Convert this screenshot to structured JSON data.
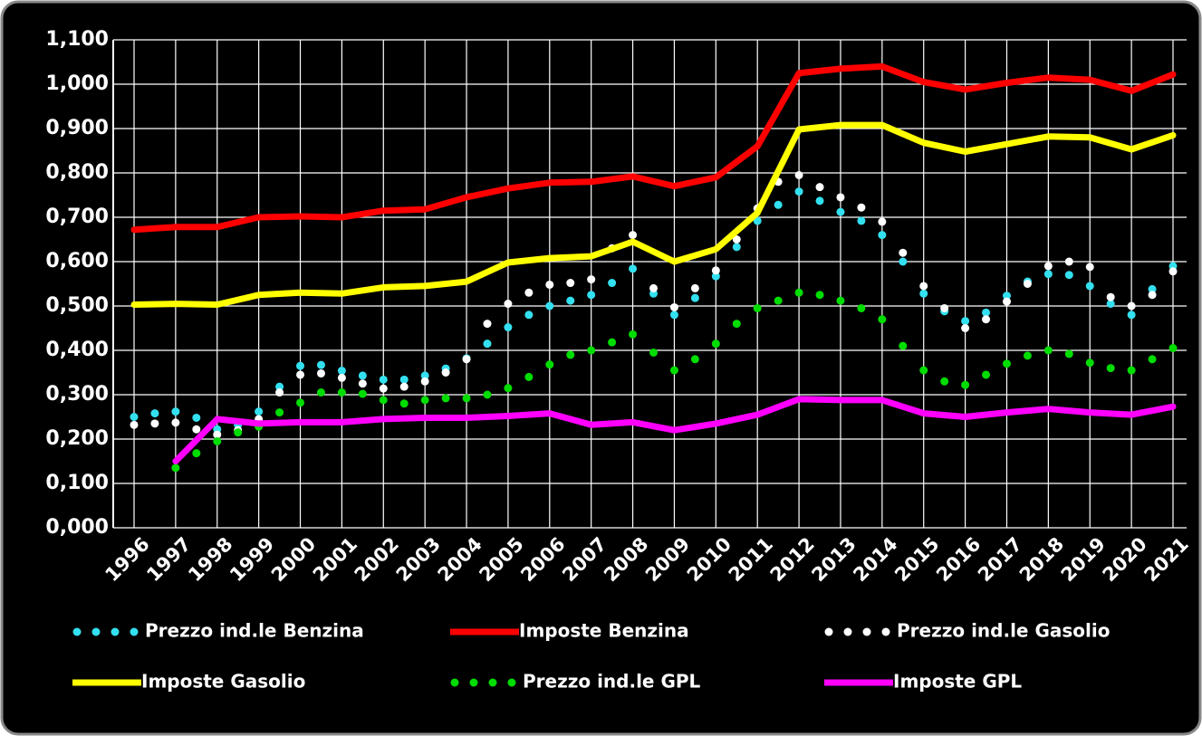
{
  "chart_data": {
    "type": "line",
    "xlim": [
      1996,
      2021
    ],
    "xticks": [
      1996,
      1997,
      1998,
      1999,
      2000,
      2001,
      2002,
      2003,
      2004,
      2005,
      2006,
      2007,
      2008,
      2009,
      2010,
      2011,
      2012,
      2013,
      2014,
      2015,
      2016,
      2017,
      2018,
      2019,
      2020,
      2021
    ],
    "ylim": [
      0,
      1.1
    ],
    "yticks": [
      {
        "value": 0,
        "label": "0,000"
      },
      {
        "value": 0.1,
        "label": "0,100"
      },
      {
        "value": 0.2,
        "label": "0,200"
      },
      {
        "value": 0.3,
        "label": "0,300"
      },
      {
        "value": 0.4,
        "label": "0,400"
      },
      {
        "value": 0.5,
        "label": "0,500"
      },
      {
        "value": 0.6,
        "label": "0,600"
      },
      {
        "value": 0.7,
        "label": "0,700"
      },
      {
        "value": 0.8,
        "label": "0,800"
      },
      {
        "value": 0.9,
        "label": "0,900"
      },
      {
        "value": 1.0,
        "label": "1,000"
      },
      {
        "value": 1.1,
        "label": "1,100"
      }
    ],
    "grid": true,
    "legend": "bottom",
    "series": [
      {
        "name": "Prezzo ind.le Benzina",
        "color": "#33e0f0",
        "style": "dotted",
        "x": [
          1996,
          1996.5,
          1997,
          1997.5,
          1998,
          1998.5,
          1999,
          1999.5,
          2000,
          2000.5,
          2001,
          2001.5,
          2002,
          2002.5,
          2003,
          2003.5,
          2004,
          2004.5,
          2005,
          2005.5,
          2006,
          2006.5,
          2007,
          2007.5,
          2008,
          2008.5,
          2009,
          2009.5,
          2010,
          2010.5,
          2011,
          2011.5,
          2012,
          2012.5,
          2013,
          2013.5,
          2014,
          2014.5,
          2015,
          2015.5,
          2016,
          2016.5,
          2017,
          2017.5,
          2018,
          2018.5,
          2019,
          2019.5,
          2020,
          2020.5,
          2021
        ],
        "values": [
          0.25,
          0.258,
          0.262,
          0.248,
          0.222,
          0.232,
          0.262,
          0.318,
          0.365,
          0.367,
          0.354,
          0.343,
          0.334,
          0.334,
          0.343,
          0.359,
          0.382,
          0.415,
          0.452,
          0.48,
          0.5,
          0.512,
          0.525,
          0.552,
          0.584,
          0.528,
          0.48,
          0.518,
          0.567,
          0.633,
          0.692,
          0.728,
          0.758,
          0.737,
          0.712,
          0.692,
          0.66,
          0.6,
          0.528,
          0.488,
          0.466,
          0.485,
          0.523,
          0.555,
          0.572,
          0.57,
          0.545,
          0.505,
          0.48,
          0.538,
          0.59
        ]
      },
      {
        "name": "Imposte Benzina",
        "color": "#ff0000",
        "style": "line",
        "x": [
          1996,
          1997,
          1998,
          1999,
          2000,
          2001,
          2002,
          2003,
          2004,
          2005,
          2006,
          2007,
          2008,
          2009,
          2010,
          2011,
          2012,
          2013,
          2014,
          2015,
          2016,
          2017,
          2018,
          2019,
          2020,
          2021
        ],
        "values": [
          0.672,
          0.678,
          0.678,
          0.7,
          0.702,
          0.7,
          0.715,
          0.718,
          0.745,
          0.765,
          0.778,
          0.78,
          0.792,
          0.77,
          0.79,
          0.86,
          1.025,
          1.035,
          1.04,
          1.005,
          0.988,
          1.003,
          1.015,
          1.01,
          0.985,
          1.022
        ]
      },
      {
        "name": "Prezzo ind.le Gasolio",
        "color": "#ffffff",
        "style": "dotted",
        "x": [
          1996,
          1996.5,
          1997,
          1997.5,
          1998,
          1998.5,
          1999,
          1999.5,
          2000,
          2000.5,
          2001,
          2001.5,
          2002,
          2002.5,
          2003,
          2003.5,
          2004,
          2004.5,
          2005,
          2005.5,
          2006,
          2006.5,
          2007,
          2007.5,
          2008,
          2008.5,
          2009,
          2009.5,
          2010,
          2010.5,
          2011,
          2011.5,
          2012,
          2012.5,
          2013,
          2013.5,
          2014,
          2014.5,
          2015,
          2015.5,
          2016,
          2016.5,
          2017,
          2017.5,
          2018,
          2018.5,
          2019,
          2019.5,
          2020,
          2020.5,
          2021
        ],
        "values": [
          0.232,
          0.235,
          0.237,
          0.222,
          0.21,
          0.22,
          0.245,
          0.305,
          0.345,
          0.348,
          0.338,
          0.325,
          0.314,
          0.318,
          0.33,
          0.35,
          0.38,
          0.46,
          0.505,
          0.53,
          0.548,
          0.552,
          0.56,
          0.63,
          0.66,
          0.54,
          0.497,
          0.54,
          0.58,
          0.65,
          0.72,
          0.78,
          0.795,
          0.768,
          0.745,
          0.722,
          0.69,
          0.62,
          0.545,
          0.495,
          0.45,
          0.47,
          0.51,
          0.55,
          0.59,
          0.6,
          0.588,
          0.52,
          0.5,
          0.525,
          0.578
        ]
      },
      {
        "name": "Imposte Gasolio",
        "color": "#ffff00",
        "style": "line",
        "x": [
          1996,
          1997,
          1998,
          1999,
          2000,
          2001,
          2002,
          2003,
          2004,
          2005,
          2006,
          2007,
          2008,
          2009,
          2010,
          2011,
          2012,
          2013,
          2014,
          2015,
          2016,
          2017,
          2018,
          2019,
          2020,
          2021
        ],
        "values": [
          0.503,
          0.505,
          0.503,
          0.525,
          0.53,
          0.528,
          0.542,
          0.545,
          0.555,
          0.598,
          0.608,
          0.612,
          0.645,
          0.6,
          0.628,
          0.71,
          0.898,
          0.908,
          0.908,
          0.868,
          0.848,
          0.865,
          0.882,
          0.88,
          0.853,
          0.885
        ]
      },
      {
        "name": "Prezzo ind.le GPL",
        "color": "#00dd00",
        "style": "dotted",
        "x": [
          1996,
          1996.5,
          1997,
          1997.5,
          1998,
          1998.5,
          1999,
          1999.5,
          2000,
          2000.5,
          2001,
          2001.5,
          2002,
          2002.5,
          2003,
          2003.5,
          2004,
          2004.5,
          2005,
          2005.5,
          2006,
          2006.5,
          2007,
          2007.5,
          2008,
          2008.5,
          2009,
          2009.5,
          2010,
          2010.5,
          2011,
          2011.5,
          2012,
          2012.5,
          2013,
          2013.5,
          2014,
          2014.5,
          2015,
          2015.5,
          2016,
          2016.5,
          2017,
          2017.5,
          2018,
          2018.5,
          2019,
          2019.5,
          2020,
          2020.5,
          2021
        ],
        "values": [
          null,
          null,
          0.135,
          0.168,
          0.195,
          0.215,
          0.228,
          0.26,
          0.282,
          0.305,
          0.305,
          0.302,
          0.288,
          0.28,
          0.288,
          0.292,
          0.292,
          0.3,
          0.315,
          0.34,
          0.368,
          0.39,
          0.4,
          0.418,
          0.436,
          0.395,
          0.355,
          0.38,
          0.415,
          0.46,
          0.495,
          0.512,
          0.53,
          0.525,
          0.512,
          0.495,
          0.47,
          0.41,
          0.355,
          0.33,
          0.322,
          0.345,
          0.37,
          0.388,
          0.4,
          0.392,
          0.372,
          0.36,
          0.355,
          0.38,
          0.405
        ]
      },
      {
        "name": "Imposte GPL",
        "color": "#ff00ff",
        "style": "line",
        "x": [
          1996,
          1997,
          1998,
          1999,
          2000,
          2001,
          2002,
          2003,
          2004,
          2005,
          2006,
          2007,
          2008,
          2009,
          2010,
          2011,
          2012,
          2013,
          2014,
          2015,
          2016,
          2017,
          2018,
          2019,
          2020,
          2021
        ],
        "values": [
          null,
          0.15,
          0.245,
          0.235,
          0.238,
          0.238,
          0.245,
          0.248,
          0.248,
          0.252,
          0.258,
          0.232,
          0.238,
          0.22,
          0.235,
          0.255,
          0.29,
          0.288,
          0.288,
          0.258,
          0.25,
          0.26,
          0.268,
          0.26,
          0.255,
          0.273
        ]
      }
    ]
  }
}
